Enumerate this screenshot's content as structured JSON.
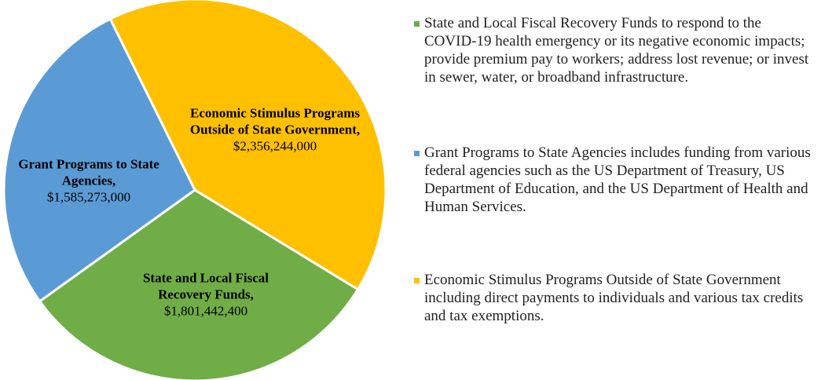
{
  "chart_data": {
    "type": "pie",
    "categories": [
      "Economic Stimulus Programs Outside of State Government,",
      "State and Local Fiscal Recovery Funds,",
      "Grant Programs to State Agencies,"
    ],
    "values": [
      2356244000,
      1801442400,
      1585273000
    ],
    "value_labels": [
      "$2,356,244,000",
      "$1,801,442,400",
      "$1,585,273,000"
    ],
    "colors": [
      "#FFC000",
      "#70AD47",
      "#5B9BD5"
    ],
    "legend": [
      {
        "color": "#70AD47",
        "text": "State and Local Fiscal Recovery Funds to respond to the COVID-19 health emergency or its negative economic impacts; provide premium pay to workers; address lost revenue; or invest in sewer, water, or broadband infrastructure."
      },
      {
        "color": "#5B9BD5",
        "text": "Grant Programs to State Agencies includes funding from various federal agencies such as the US Department of Treasury, US Department of Education, and the US Department of Health and Human Services."
      },
      {
        "color": "#FFC000",
        "text": "Economic Stimulus Programs Outside of State Government  including direct payments to individuals and various tax credits and tax exemptions."
      }
    ]
  }
}
